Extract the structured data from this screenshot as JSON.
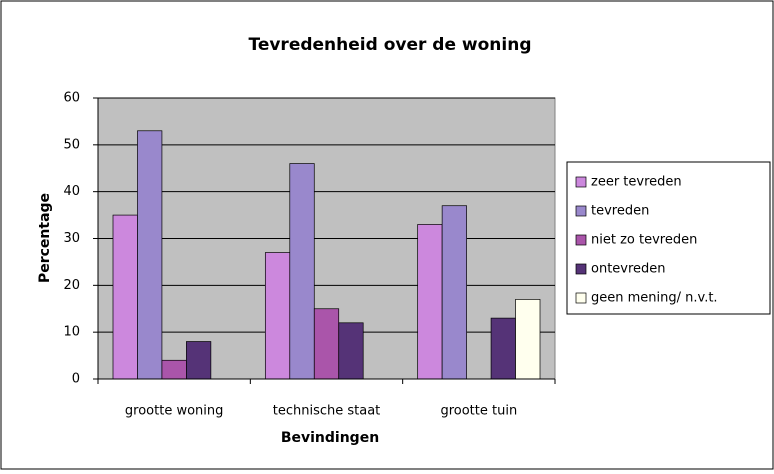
{
  "chart_data": {
    "type": "bar",
    "title": "Tevredenheid over de woning",
    "x_label": "Bevindingen",
    "y_label": "Percentage",
    "categories": [
      "grootte woning",
      "technische staat",
      "grootte tuin"
    ],
    "series": [
      {
        "name": "zeer tevreden",
        "color": "#cc88dd",
        "values": [
          35,
          27,
          33
        ]
      },
      {
        "name": "tevreden",
        "color": "#9988cc",
        "values": [
          53,
          46,
          37
        ]
      },
      {
        "name": "niet zo tevreden",
        "color": "#aa55aa",
        "values": [
          4,
          15,
          0
        ]
      },
      {
        "name": "ontevreden",
        "color": "#553377",
        "values": [
          8,
          12,
          13
        ]
      },
      {
        "name": "geen mening/ n.v.t.",
        "color": "#ffffee",
        "values": [
          0,
          0,
          17
        ]
      }
    ],
    "ylim": [
      0,
      60
    ],
    "yticks": [
      0,
      10,
      20,
      30,
      40,
      50,
      60
    ],
    "grid": true,
    "legend": "right"
  }
}
